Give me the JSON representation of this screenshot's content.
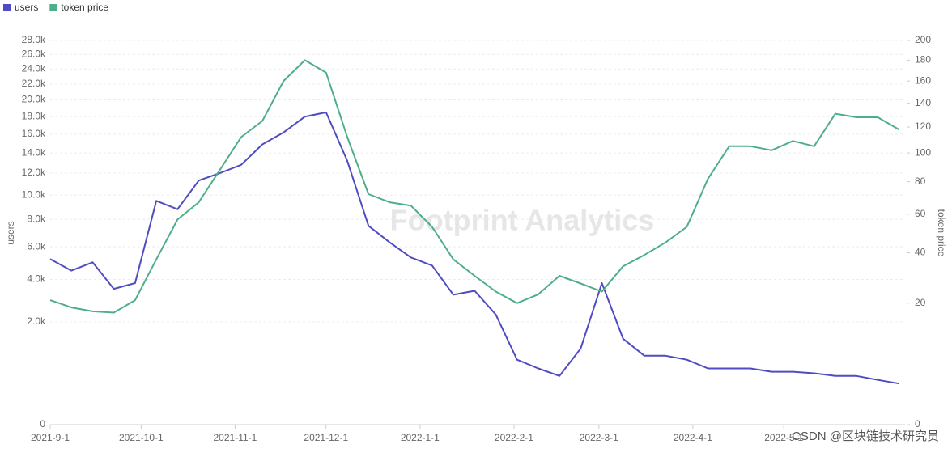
{
  "chart_data": {
    "type": "line",
    "scale": "sqrt",
    "grid": true,
    "watermark": "Footprint Analytics",
    "credit": "CSDN @区块链技术研究员",
    "ylabel": "users",
    "y2label": "token price",
    "legend_position": "top-left",
    "x": [
      "2021-9-1",
      "2021-9-8",
      "2021-9-15",
      "2021-9-22",
      "2021-9-29",
      "2021-10-6",
      "2021-10-13",
      "2021-10-20",
      "2021-10-27",
      "2021-11-3",
      "2021-11-10",
      "2021-11-17",
      "2021-11-24",
      "2021-12-1",
      "2021-12-8",
      "2021-12-15",
      "2021-12-22",
      "2021-12-29",
      "2022-1-5",
      "2022-1-12",
      "2022-1-19",
      "2022-1-26",
      "2022-2-2",
      "2022-2-9",
      "2022-2-16",
      "2022-2-23",
      "2022-3-2",
      "2022-3-9",
      "2022-3-16",
      "2022-3-23",
      "2022-3-30",
      "2022-4-6",
      "2022-4-13",
      "2022-4-20",
      "2022-4-27",
      "2022-5-4",
      "2022-5-11",
      "2022-5-18",
      "2022-5-25",
      "2022-6-1",
      "2022-6-8"
    ],
    "xlim": [
      "2021-9-1",
      "2022-6-10"
    ],
    "xticks": [
      "2021-9-1",
      "2021-10-1",
      "2021-11-1",
      "2021-12-1",
      "2022-1-1",
      "2022-2-1",
      "2022-3-1",
      "2022-4-1",
      "2022-5-1"
    ],
    "ylim": [
      0,
      28000
    ],
    "yticks": [
      0,
      {
        "value": 2000,
        "label": "2.0k"
      },
      {
        "value": 4000,
        "label": "4.0k"
      },
      {
        "value": 6000,
        "label": "6.0k"
      },
      {
        "value": 8000,
        "label": "8.0k"
      },
      {
        "value": 10000,
        "label": "10.0k"
      },
      {
        "value": 12000,
        "label": "12.0k"
      },
      {
        "value": 14000,
        "label": "14.0k"
      },
      {
        "value": 16000,
        "label": "16.0k"
      },
      {
        "value": 18000,
        "label": "18.0k"
      },
      {
        "value": 20000,
        "label": "20.0k"
      },
      {
        "value": 22000,
        "label": "22.0k"
      },
      {
        "value": 24000,
        "label": "24.0k"
      },
      {
        "value": 26000,
        "label": "26.0k"
      },
      {
        "value": 28000,
        "label": "28.0k"
      }
    ],
    "y2lim": [
      0,
      200
    ],
    "y2ticks": [
      0,
      20,
      40,
      60,
      80,
      100,
      120,
      140,
      160,
      180,
      200
    ],
    "series": [
      {
        "name": "users",
        "color": "#4f4cc2",
        "values": [
          5200,
          4500,
          5000,
          3500,
          3800,
          9500,
          8800,
          11300,
          12000,
          12800,
          14900,
          16200,
          18000,
          18500,
          13200,
          7500,
          6300,
          5300,
          4800,
          3200,
          3400,
          2300,
          800,
          600,
          450,
          1100,
          3800,
          1400,
          900,
          900,
          800,
          600,
          600,
          600,
          530,
          530,
          500,
          450,
          450,
          380,
          320
        ]
      },
      {
        "name": "token price",
        "color": "#4fae8a",
        "axis": "y2",
        "values": [
          21,
          18.6,
          17.4,
          17,
          21,
          37,
          57,
          67,
          88,
          112,
          125,
          160,
          180,
          168,
          112,
          72,
          67,
          65,
          53,
          37,
          30,
          24,
          20,
          23,
          30,
          27,
          24,
          34,
          39,
          45,
          53,
          82,
          105,
          105,
          102,
          109,
          105,
          131,
          128,
          128,
          118
        ]
      }
    ]
  }
}
